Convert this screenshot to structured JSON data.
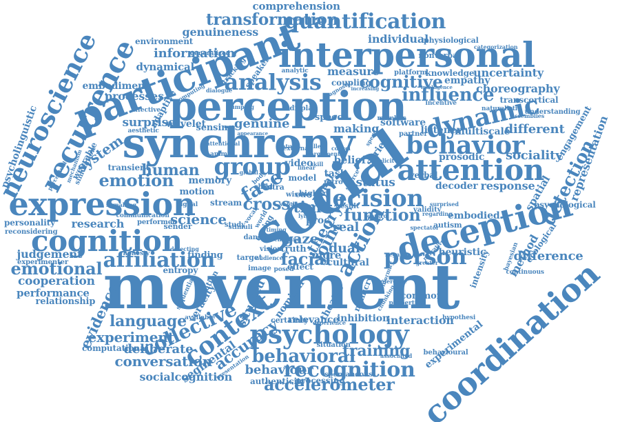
{
  "color": "#4a86bd",
  "words": [
    "comprehension",
    "transformation",
    "quantification",
    "genuineness",
    "environment",
    "individual",
    "physiological",
    "participant",
    "interpersonal",
    "information",
    "dynamical",
    "nonverbal",
    "categorization",
    "neuroscience",
    "recurrence",
    "embodiment",
    "processes",
    "measure",
    "cognitive",
    "empathy",
    "uncertainty",
    "knowledge",
    "analysis",
    "choreography",
    "perception",
    "influence",
    "dynamic",
    "transcortical",
    "adaptive",
    "affective",
    "wavelet",
    "sensing",
    "surprise",
    "genuine",
    "making",
    "software",
    "listener",
    "multiscale",
    "different",
    "understanding",
    "engagement",
    "psycholinguistic",
    "synchrony",
    "behavior",
    "system",
    "group",
    "attention",
    "sociality",
    "detection",
    "representation",
    "human",
    "emotion",
    "memory",
    "decision",
    "prosodic",
    "social",
    "response",
    "spatial",
    "expression",
    "belief",
    "model",
    "motion",
    "cross",
    "psychological",
    "research",
    "science",
    "time",
    "function",
    "embodied",
    "personality",
    "cognition",
    "face",
    "proc",
    "theory",
    "action",
    "deception",
    "status",
    "method",
    "autism",
    "ecological",
    "affiliation",
    "gaze",
    "real",
    "judgement",
    "emotional",
    "facial",
    "dual",
    "person",
    "heuristic",
    "difference",
    "cooperation",
    "movement",
    "truth",
    "cultural",
    "more",
    "intensity",
    "performance",
    "relationship",
    "evidence",
    "common",
    "language",
    "veracity",
    "situated",
    "nominal",
    "theatre",
    "mimicry",
    "collective",
    "context",
    "inhibition",
    "relevance",
    "certainty",
    "interaction",
    "experiment",
    "psychology",
    "accuracy",
    "coordination",
    "computational",
    "behavioural",
    "experimental",
    "deliberate",
    "segmental",
    "behavioral",
    "training",
    "conversation",
    "recognition",
    "behaviour",
    "authenticity",
    "processing",
    "socialcognition",
    "accelerometer",
    "joint",
    "finding",
    "honesty",
    "entropy",
    "imitation",
    "target",
    "stream",
    "dance",
    "image",
    "effect",
    "posed",
    "vision",
    "cue",
    "video",
    "task",
    "series",
    "signal",
    "animal",
    "speech",
    "display",
    "analytic",
    "speaker",
    "coupling",
    "tracking",
    "generalized",
    "platform",
    "verbal",
    "partner",
    "member",
    "hypothesi",
    "bayesian",
    "continuous",
    "spontaneous",
    "situation",
    "sequential",
    "perceptual",
    "reconsidering",
    "wearable",
    "simulation",
    "validity",
    "decoder",
    "transient",
    "mechanism",
    "aesthetic",
    "experimenter",
    "detecting",
    "associated",
    "available",
    "properties",
    "communication",
    "performer",
    "sender",
    "study",
    "visual",
    "higher",
    "incentive",
    "naturalistic",
    "assemblies",
    "intelligence",
    "diagnostic",
    "increasing",
    "computing",
    "appearance",
    "pumping",
    "speed",
    "intra",
    "child",
    "wise",
    "linear",
    "retro",
    "body",
    "surprised",
    "regarding",
    "negative",
    "greater",
    "experience",
    "chunking",
    "vocal",
    "stimuli",
    "external",
    "result",
    "cueing",
    "source",
    "lying",
    "world",
    "timing",
    "global",
    "cogsci",
    "attentional",
    "signalling",
    "argument",
    "filled",
    "implicit",
    "control",
    "narrative",
    "dialogue",
    "inference",
    "nature",
    "spectator",
    "presentation",
    "conformity",
    "subtle",
    "cheating",
    "local",
    "skill",
    "audience"
  ]
}
